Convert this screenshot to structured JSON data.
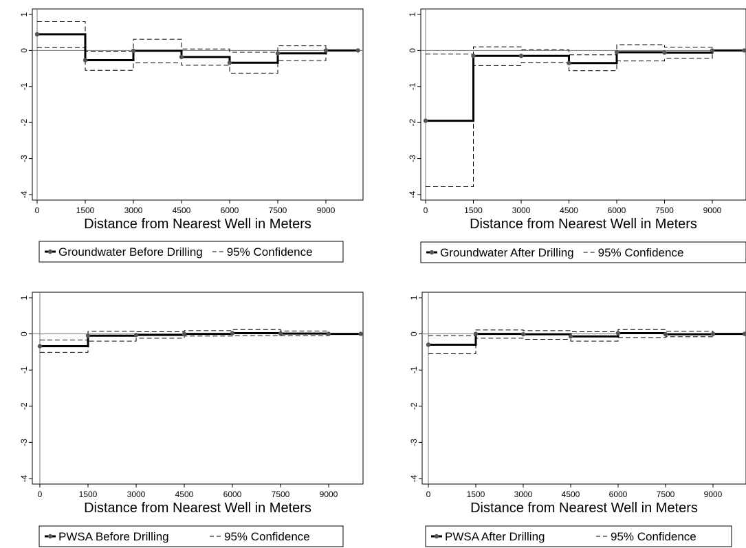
{
  "chart_data": [
    {
      "type": "line",
      "subtype": "step",
      "xlabel": "Distance from Nearest Well in Meters",
      "ylim": [
        -4,
        1
      ],
      "yticks": [
        -4,
        -3,
        -2,
        -1,
        0,
        1
      ],
      "xticks": [
        0,
        1500,
        3000,
        4500,
        6000,
        7500,
        9000
      ],
      "x": [
        0,
        1500,
        3000,
        4500,
        6000,
        7500,
        9000,
        10000
      ],
      "series": [
        {
          "name": "Groundwater Before Drilling",
          "style": "solid-markers",
          "values": [
            0.45,
            -0.27,
            -0.01,
            -0.18,
            -0.34,
            -0.08,
            0.0,
            0.0
          ]
        },
        {
          "name": "95% Confidence",
          "style": "dashed",
          "role": "upper",
          "values": [
            0.8,
            -0.02,
            0.31,
            0.04,
            -0.05,
            0.13,
            0.0,
            0.0
          ]
        },
        {
          "role": "lower",
          "style": "dashed",
          "values": [
            0.08,
            -0.55,
            -0.34,
            -0.41,
            -0.63,
            -0.28,
            0.0,
            0.0
          ]
        }
      ],
      "legend_position": "bottom"
    },
    {
      "type": "line",
      "subtype": "step",
      "xlabel": "Distance from Nearest Well in Meters",
      "ylim": [
        -4,
        1
      ],
      "yticks": [
        -4,
        -3,
        -2,
        -1,
        0,
        1
      ],
      "xticks": [
        0,
        1500,
        3000,
        4500,
        6000,
        7500,
        9000
      ],
      "x": [
        0,
        1500,
        3000,
        4500,
        6000,
        7500,
        9000,
        10000
      ],
      "series": [
        {
          "name": "Groundwater After Drilling",
          "style": "solid-markers",
          "values": [
            -1.95,
            -0.15,
            -0.15,
            -0.35,
            -0.05,
            -0.06,
            0.0,
            0.0
          ]
        },
        {
          "name": "95% Confidence",
          "style": "dashed",
          "role": "upper",
          "values": [
            -0.1,
            0.1,
            0.02,
            -0.12,
            0.16,
            0.09,
            0.0,
            0.0
          ]
        },
        {
          "role": "lower",
          "style": "dashed",
          "values": [
            -3.78,
            -0.42,
            -0.33,
            -0.56,
            -0.29,
            -0.22,
            0.0,
            0.0
          ]
        }
      ],
      "legend_position": "bottom"
    },
    {
      "type": "line",
      "subtype": "step",
      "xlabel": "Distance from Nearest Well in Meters",
      "ylim": [
        -4,
        1
      ],
      "yticks": [
        -4,
        -3,
        -2,
        -1,
        0,
        1
      ],
      "xticks": [
        0,
        1500,
        3000,
        4500,
        6000,
        7500,
        9000
      ],
      "x": [
        0,
        1500,
        3000,
        4500,
        6000,
        7500,
        9000,
        10000
      ],
      "series": [
        {
          "name": "PWSA Before Drilling",
          "style": "solid-markers",
          "values": [
            -0.34,
            -0.05,
            -0.03,
            0.0,
            0.02,
            0.01,
            0.0,
            0.0
          ]
        },
        {
          "name": "95% Confidence",
          "style": "dashed",
          "role": "upper",
          "values": [
            -0.17,
            0.07,
            0.06,
            0.09,
            0.12,
            0.08,
            0.0,
            0.0
          ]
        },
        {
          "role": "lower",
          "style": "dashed",
          "values": [
            -0.51,
            -0.2,
            -0.12,
            -0.06,
            -0.05,
            -0.05,
            0.0,
            0.0
          ]
        }
      ],
      "legend_position": "bottom"
    },
    {
      "type": "line",
      "subtype": "step",
      "xlabel": "Distance from Nearest Well in Meters",
      "ylim": [
        -4,
        1
      ],
      "yticks": [
        -4,
        -3,
        -2,
        -1,
        0,
        1
      ],
      "xticks": [
        0,
        1500,
        3000,
        4500,
        6000,
        7500,
        9000
      ],
      "x": [
        0,
        1500,
        3000,
        4500,
        6000,
        7500,
        9000,
        10000
      ],
      "series": [
        {
          "name": "PWSA After Drilling",
          "style": "solid-markers",
          "values": [
            -0.3,
            0.0,
            -0.01,
            -0.07,
            0.02,
            -0.01,
            0.0,
            0.0
          ]
        },
        {
          "name": "95% Confidence",
          "style": "dashed",
          "role": "upper",
          "values": [
            -0.05,
            0.11,
            0.09,
            0.06,
            0.12,
            0.07,
            0.0,
            0.0
          ]
        },
        {
          "role": "lower",
          "style": "dashed",
          "values": [
            -0.55,
            -0.12,
            -0.15,
            -0.2,
            -0.1,
            -0.08,
            0.0,
            0.0
          ]
        }
      ],
      "legend_position": "bottom"
    }
  ],
  "colors": {
    "estimate": "#000000",
    "marker": "#555555",
    "confidence": "#000000",
    "zero_line": "#777777"
  }
}
